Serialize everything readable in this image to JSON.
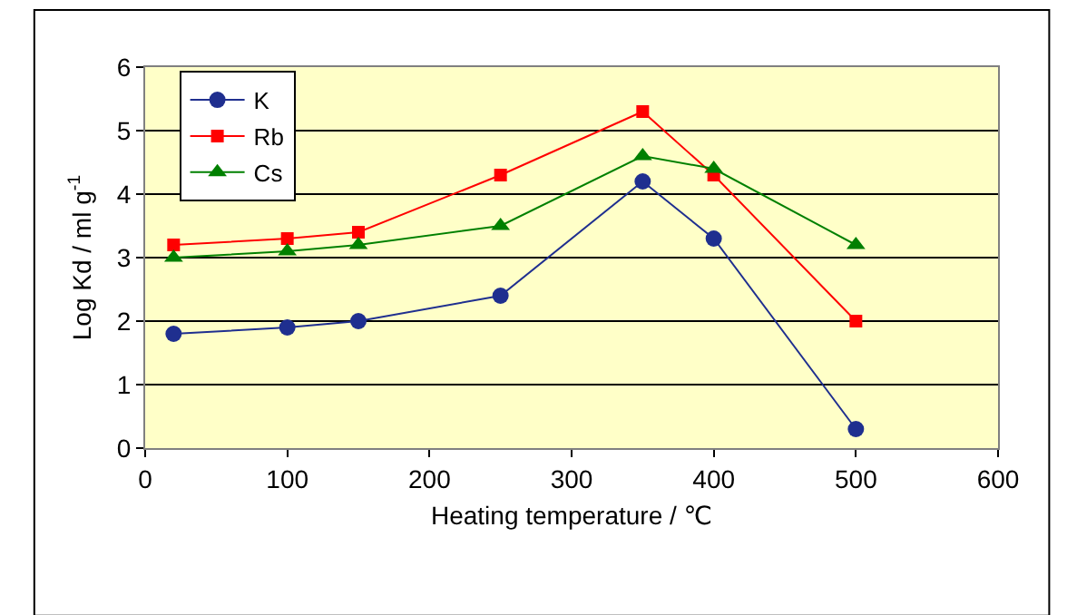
{
  "chart_data": {
    "type": "line",
    "xlabel": "Heating temperature / ℃",
    "ylabel": "Log Kd / ml g$^{-1}$",
    "x": [
      20,
      100,
      150,
      250,
      350,
      400,
      500
    ],
    "series": [
      {
        "name": "K",
        "color": "#1f2f8f",
        "marker": "circle",
        "values": [
          1.8,
          1.9,
          2.0,
          2.4,
          4.2,
          3.3,
          0.3
        ]
      },
      {
        "name": "Rb",
        "color": "#ff0000",
        "marker": "square",
        "values": [
          3.2,
          3.3,
          3.4,
          4.3,
          5.3,
          4.3,
          2.0
        ]
      },
      {
        "name": "Cs",
        "color": "#008000",
        "marker": "triangle",
        "values": [
          3.0,
          3.1,
          3.2,
          3.5,
          4.6,
          4.4,
          3.2
        ]
      }
    ],
    "xlim": [
      0,
      600
    ],
    "xticks": [
      0,
      100,
      200,
      300,
      400,
      500,
      600
    ],
    "ylim": [
      0,
      6
    ],
    "yticks": [
      0,
      1,
      2,
      3,
      4,
      5,
      6
    ],
    "grid": "y",
    "legend": "top left",
    "line_style": "solid"
  }
}
